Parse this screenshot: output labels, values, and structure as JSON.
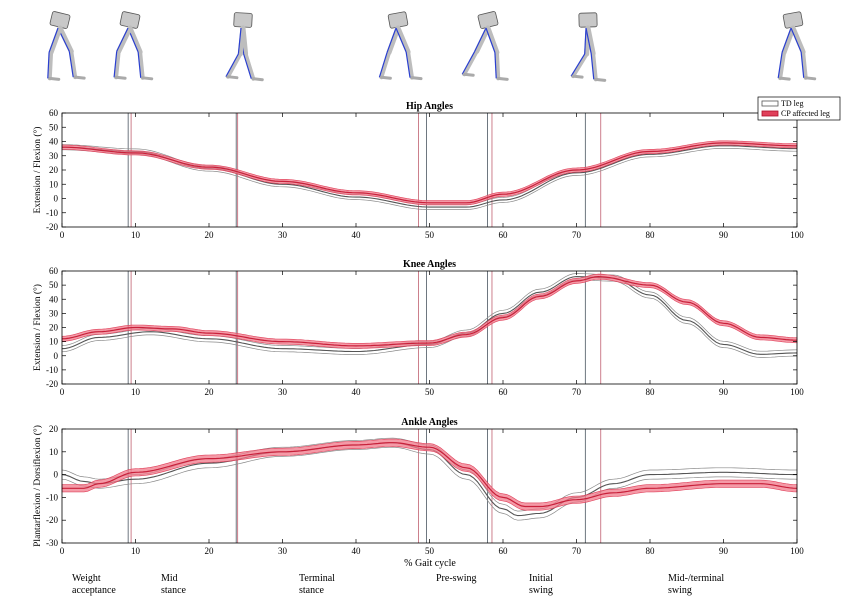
{
  "figure": {
    "xlabel": "% Gait cycle",
    "legend": {
      "placement": "top-right",
      "entries": [
        "TD leg",
        "CP affected leg"
      ]
    },
    "colors": {
      "td": "#555555",
      "cp": "#e0405a",
      "cp_band": "#f0788a"
    },
    "phase_lines": {
      "black": [
        9.0,
        23.7,
        49.6,
        57.9,
        71.2
      ],
      "red": [
        9.4,
        23.9,
        48.5,
        58.5,
        73.3
      ]
    },
    "phases": [
      {
        "lines": [
          "Weight",
          "acceptance"
        ]
      },
      {
        "lines": [
          "Mid",
          "stance"
        ]
      },
      {
        "lines": [
          "Terminal",
          "stance"
        ]
      },
      {
        "lines": [
          "Pre-swing"
        ]
      },
      {
        "lines": [
          "Initial",
          "swing"
        ]
      },
      {
        "lines": [
          "Mid-/terminal",
          "swing"
        ]
      }
    ],
    "leg_icons": [
      "leg-pose-1",
      "leg-pose-2",
      "leg-pose-3",
      "leg-pose-4",
      "leg-pose-5",
      "leg-pose-6",
      "leg-pose-7"
    ]
  },
  "chart_data": [
    {
      "type": "line",
      "title": "Hip Angles",
      "ylabel": "Extension / Flexion (°)",
      "xlim": [
        0,
        100
      ],
      "ylim": [
        -20,
        60
      ],
      "yticks": [
        -20,
        -10,
        0,
        10,
        20,
        30,
        40,
        50,
        60
      ],
      "xticks": [
        0,
        10,
        20,
        30,
        40,
        50,
        60,
        70,
        80,
        90,
        100
      ],
      "series": [
        {
          "name": "TD leg",
          "x": [
            0,
            10,
            20,
            30,
            40,
            50,
            55,
            60,
            70,
            80,
            90,
            100
          ],
          "y": [
            36,
            33,
            21,
            10,
            1,
            -6,
            -6,
            -1,
            18,
            31,
            37,
            35
          ],
          "sd": 1.8
        },
        {
          "name": "CP affected leg",
          "x": [
            0,
            10,
            20,
            30,
            40,
            50,
            55,
            60,
            70,
            80,
            90,
            100
          ],
          "y": [
            36,
            32,
            22,
            12,
            4,
            -3,
            -3,
            3,
            20,
            33,
            39,
            37
          ],
          "sd": 1.5
        }
      ]
    },
    {
      "type": "line",
      "title": "Knee Angles",
      "ylabel": "Extension / Flexion (°)",
      "xlim": [
        0,
        100
      ],
      "ylim": [
        -20,
        60
      ],
      "yticks": [
        -20,
        -10,
        0,
        10,
        20,
        30,
        40,
        50,
        60
      ],
      "xticks": [
        0,
        10,
        20,
        30,
        40,
        50,
        60,
        70,
        80,
        90,
        100
      ],
      "series": [
        {
          "name": "TD leg",
          "x": [
            0,
            5,
            12,
            20,
            30,
            40,
            50,
            55,
            60,
            65,
            70,
            75,
            80,
            85,
            90,
            95,
            100
          ],
          "y": [
            5,
            13,
            17,
            12,
            5,
            3,
            8,
            16,
            30,
            45,
            56,
            55,
            43,
            25,
            8,
            1,
            2
          ],
          "sd": 2.2
        },
        {
          "name": "CP affected leg",
          "x": [
            0,
            5,
            10,
            15,
            20,
            30,
            40,
            50,
            55,
            60,
            65,
            70,
            73,
            80,
            85,
            90,
            95,
            100
          ],
          "y": [
            12,
            17,
            20,
            19,
            16,
            10,
            7,
            9,
            15,
            27,
            42,
            53,
            56,
            50,
            38,
            23,
            13,
            11
          ],
          "sd": 1.8
        }
      ]
    },
    {
      "type": "line",
      "title": "Ankle Angles",
      "ylabel": "Plantarflexion / Dorsiflexion (°)",
      "xlim": [
        0,
        100
      ],
      "ylim": [
        -30,
        20
      ],
      "yticks": [
        -30,
        -20,
        -10,
        0,
        10,
        20
      ],
      "xticks": [
        0,
        10,
        20,
        30,
        40,
        50,
        60,
        70,
        80,
        90,
        100
      ],
      "series": [
        {
          "name": "TD leg",
          "x": [
            0,
            3,
            5,
            10,
            20,
            30,
            40,
            45,
            50,
            55,
            60,
            62,
            65,
            70,
            75,
            80,
            90,
            100
          ],
          "y": [
            0,
            -3,
            -4,
            -2,
            5,
            10,
            13,
            14,
            11,
            0,
            -15,
            -18,
            -17,
            -10,
            -4,
            0,
            1,
            0
          ],
          "sd": 2.0
        },
        {
          "name": "CP affected leg",
          "x": [
            0,
            3,
            5,
            10,
            20,
            30,
            40,
            45,
            50,
            55,
            60,
            63,
            65,
            70,
            75,
            80,
            90,
            95,
            100
          ],
          "y": [
            -6,
            -6,
            -4,
            1,
            7,
            10,
            13,
            14,
            12,
            3,
            -10,
            -14,
            -14,
            -11,
            -8,
            -6,
            -4,
            -4,
            -6
          ],
          "sd": 1.6
        }
      ]
    }
  ]
}
